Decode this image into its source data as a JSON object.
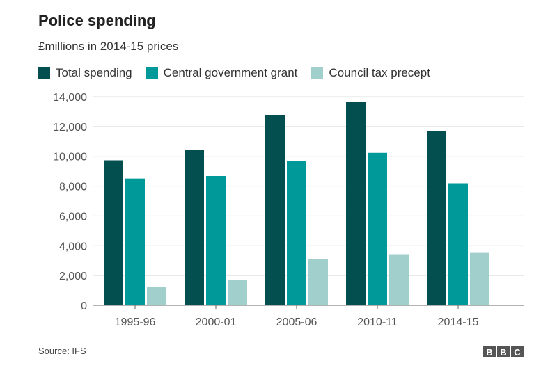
{
  "chart_data": {
    "type": "bar",
    "title": "Police spending",
    "subtitle": "£millions in 2014-15 prices",
    "categories": [
      "1995-96",
      "2000-01",
      "2005-06",
      "2010-11",
      "2014-15"
    ],
    "series": [
      {
        "name": "Total spending",
        "color": "#034f4f",
        "values": [
          9730,
          10450,
          12770,
          13660,
          11710
        ]
      },
      {
        "name": "Central government grant",
        "color": "#009999",
        "values": [
          8510,
          8680,
          9670,
          10230,
          8190
        ]
      },
      {
        "name": "Council tax precept",
        "color": "#a0cfcc",
        "values": [
          1220,
          1710,
          3100,
          3430,
          3520
        ]
      }
    ],
    "yticks": [
      "0",
      "2,000",
      "4,000",
      "6,000",
      "8,000",
      "10,000",
      "12,000",
      "14,000"
    ],
    "ylim": [
      0,
      14000
    ],
    "grid": true,
    "legend": "top-left",
    "xlabel": "",
    "ylabel": ""
  },
  "footer": {
    "source": "Source: IFS",
    "logo": [
      "B",
      "B",
      "C"
    ]
  }
}
